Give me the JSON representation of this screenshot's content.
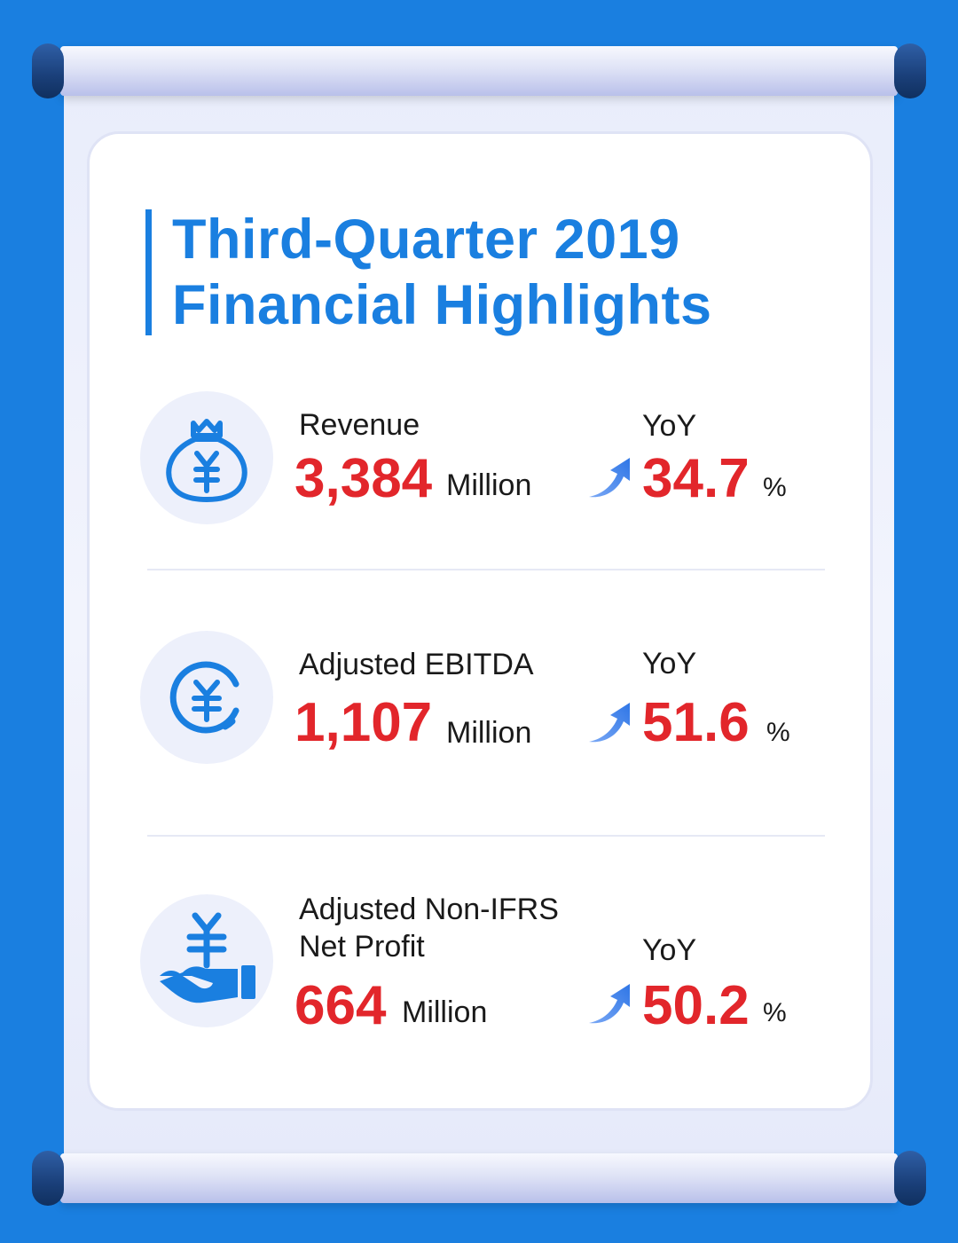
{
  "title": {
    "line1": "Third-Quarter 2019",
    "line2": "Financial Highlights"
  },
  "metrics": [
    {
      "label_lines": [
        "Revenue"
      ],
      "value": "3,384",
      "unit": "Million",
      "yoy_label": "YoY",
      "yoy_value": "34.7",
      "yoy_unit": "%",
      "icon": "money-bag-icon"
    },
    {
      "label_lines": [
        "Adjusted EBITDA"
      ],
      "value": "1,107",
      "unit": "Million",
      "yoy_label": "YoY",
      "yoy_value": "51.6",
      "yoy_unit": "%",
      "icon": "yuan-coin-icon"
    },
    {
      "label_lines": [
        "Adjusted Non-IFRS",
        "Net Profit"
      ],
      "value": "664",
      "unit": "Million",
      "yoy_label": "YoY",
      "yoy_value": "50.2",
      "yoy_unit": "%",
      "icon": "hand-yuan-icon"
    }
  ],
  "colors": {
    "background": "#1a7fe0",
    "accent_blue": "#1a7fe0",
    "value_red": "#e2262b",
    "arrow_gradient": [
      "#2f76e6",
      "#7aa8f5"
    ]
  }
}
